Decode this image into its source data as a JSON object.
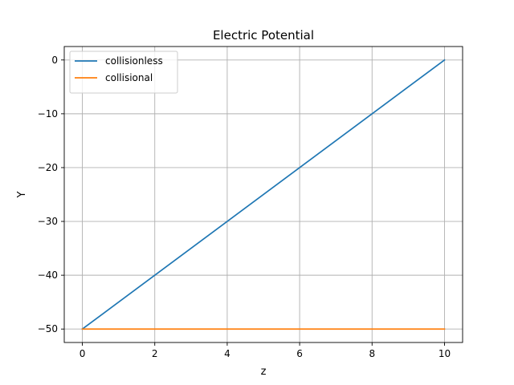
{
  "chart_data": {
    "type": "line",
    "title": "Electric Potential",
    "xlabel": "z",
    "ylabel": "Y",
    "xlim": [
      -0.5,
      10.5
    ],
    "ylim": [
      -52.5,
      2.5
    ],
    "xticks": [
      0,
      2,
      4,
      6,
      8,
      10
    ],
    "yticks": [
      0,
      -10,
      -20,
      -30,
      -40,
      -50
    ],
    "xtick_labels": [
      "0",
      "2",
      "4",
      "6",
      "8",
      "10"
    ],
    "ytick_labels": [
      "0",
      "−10",
      "−20",
      "−30",
      "−40",
      "−50"
    ],
    "grid": true,
    "legend_position": "top-left",
    "series": [
      {
        "name": "collisionless",
        "color": "#1f77b4",
        "x": [
          0,
          10
        ],
        "y": [
          -50,
          0
        ]
      },
      {
        "name": "collisional",
        "color": "#ff7f0e",
        "x": [
          0,
          10
        ],
        "y": [
          -50,
          -50
        ]
      }
    ]
  }
}
